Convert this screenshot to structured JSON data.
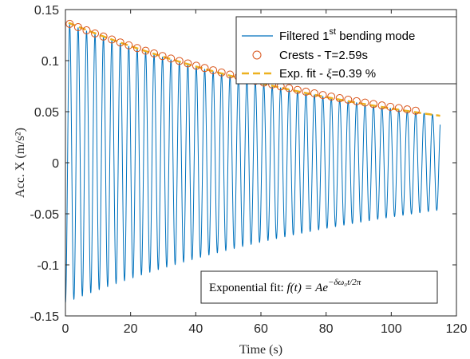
{
  "chart_data": {
    "type": "line",
    "xlabel": "Time (s)",
    "ylabel": "Acc. X (m/s²)",
    "xlim": [
      0,
      120
    ],
    "ylim": [
      -0.15,
      0.15
    ],
    "xticks": [
      0,
      20,
      40,
      60,
      80,
      100,
      120
    ],
    "yticks": [
      -0.15,
      -0.1,
      -0.05,
      0,
      0.05,
      0.1,
      0.15
    ],
    "xtick_labels": [
      "0",
      "20",
      "40",
      "60",
      "80",
      "100",
      "120"
    ],
    "ytick_labels": [
      "-0.15",
      "-0.1",
      "-0.05",
      "0",
      "0.05",
      "0.1",
      "0.15"
    ],
    "grid": false,
    "legend_position": "top-right",
    "series": [
      {
        "name": "Filtered 1st bending mode",
        "kind": "signal",
        "color": "#0072BD",
        "model": "damped-cosine",
        "amplitude": 0.137,
        "period": 2.59,
        "damping_ratio": 0.0039,
        "t_start": 0,
        "t_end": 115
      },
      {
        "name": "Crests - T=2.59s",
        "kind": "markers",
        "color": "#D95319",
        "period": 2.59,
        "count": 42,
        "first_x": 1.3,
        "first_y": 0.136,
        "last_y": 0.051
      },
      {
        "name": "Exp. fit - ξ=0.39 %",
        "kind": "dashed-fit",
        "color": "#EDB120",
        "x_range": [
          1,
          115
        ],
        "y_start": 0.137,
        "y_end": 0.046
      }
    ],
    "legend": {
      "entry1_prefix": "Filtered 1",
      "entry1_sup": "st",
      "entry1_suffix": " bending mode",
      "entry2": "Crests - T=2.59s",
      "entry3_prefix": "Exp. fit - ",
      "entry3_symbol": "ξ",
      "entry3_suffix": "=0.39 %"
    },
    "annotation": {
      "text": "Exponential fit: ",
      "formula_lhs": "f(t) = Ae",
      "formula_exp": "−δω₀t/2π"
    }
  }
}
